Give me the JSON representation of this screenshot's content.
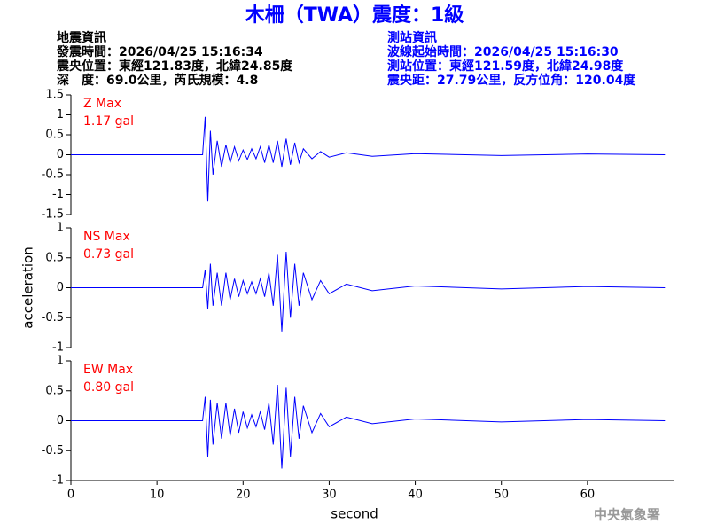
{
  "header": {
    "title": "木柵（TWA）震度：1級",
    "left": [
      "地震資訊",
      "發震時間：2026/04/25 15:16:34",
      "震央位置：東經121.83度，北緯24.85度",
      "深　度：69.0公里，芮氏規模：4.8"
    ],
    "right": [
      "測站資訊",
      "波線起始時間：2026/04/25 15:16:30",
      "測站位置：東經121.59度，北緯24.98度",
      "震央距：27.79公里，反方位角：120.04度"
    ]
  },
  "footer": "中央氣象署",
  "chart_data": [
    {
      "type": "line",
      "color": "#0000ff",
      "label_name": "Z Max",
      "label_value": "1.17 gal",
      "x": [
        0,
        15.3,
        15.6,
        15.9,
        16.2,
        16.5,
        17,
        17.5,
        18,
        18.5,
        19,
        19.5,
        20,
        20.5,
        21,
        21.5,
        22,
        22.5,
        23,
        23.5,
        24,
        24.5,
        25,
        25.5,
        26,
        26.5,
        27,
        28,
        29,
        30,
        32,
        35,
        40,
        50,
        60,
        69
      ],
      "values": [
        0,
        0,
        0.95,
        -1.17,
        0.6,
        -0.5,
        0.35,
        -0.3,
        0.25,
        -0.2,
        0.2,
        -0.15,
        0.12,
        -0.12,
        0.15,
        -0.1,
        0.2,
        -0.2,
        0.25,
        -0.2,
        0.35,
        -0.3,
        0.4,
        -0.25,
        0.3,
        -0.2,
        0.15,
        -0.1,
        0.08,
        -0.06,
        0.05,
        -0.04,
        0.03,
        -0.02,
        0.02,
        0
      ],
      "xlim": [
        0,
        70
      ],
      "ylim": [
        -1.5,
        1.5
      ],
      "yticks": [
        -1.5,
        -1,
        -0.5,
        0,
        0.5,
        1,
        1.5
      ]
    },
    {
      "type": "line",
      "color": "#0000ff",
      "label_name": "NS Max",
      "label_value": "0.73 gal",
      "y_label": "acceleration",
      "x": [
        0,
        15.3,
        15.6,
        15.9,
        16.2,
        16.5,
        17,
        17.5,
        18,
        18.5,
        19,
        19.5,
        20,
        20.5,
        21,
        21.5,
        22,
        22.5,
        23,
        23.5,
        24,
        24.5,
        25,
        25.5,
        26,
        26.5,
        27,
        28,
        29,
        30,
        32,
        35,
        40,
        50,
        60,
        69
      ],
      "values": [
        0,
        0,
        0.3,
        -0.35,
        0.4,
        -0.3,
        0.25,
        -0.3,
        0.25,
        -0.2,
        0.15,
        -0.15,
        0.12,
        -0.1,
        0.1,
        -0.1,
        0.15,
        -0.15,
        0.25,
        -0.3,
        0.55,
        -0.73,
        0.6,
        -0.5,
        0.4,
        -0.3,
        0.25,
        -0.2,
        0.12,
        -0.1,
        0.06,
        -0.05,
        0.03,
        -0.02,
        0.02,
        0
      ],
      "xlim": [
        0,
        70
      ],
      "ylim": [
        -1,
        1
      ],
      "yticks": [
        -1,
        -0.5,
        0,
        0.5,
        1
      ]
    },
    {
      "type": "line",
      "color": "#0000ff",
      "label_name": "EW Max",
      "label_value": "0.80 gal",
      "x_label": "second",
      "x": [
        0,
        15.3,
        15.6,
        15.9,
        16.2,
        16.5,
        17,
        17.5,
        18,
        18.5,
        19,
        19.5,
        20,
        20.5,
        21,
        21.5,
        22,
        22.5,
        23,
        23.5,
        24,
        24.5,
        25,
        25.5,
        26,
        26.5,
        27,
        28,
        29,
        30,
        32,
        35,
        40,
        50,
        60,
        69
      ],
      "values": [
        0,
        0,
        0.4,
        -0.6,
        0.35,
        -0.4,
        0.3,
        -0.3,
        0.3,
        -0.25,
        0.2,
        -0.2,
        0.15,
        -0.12,
        0.1,
        -0.1,
        0.15,
        -0.15,
        0.3,
        -0.4,
        0.6,
        -0.8,
        0.55,
        -0.6,
        0.4,
        -0.3,
        0.25,
        -0.2,
        0.12,
        -0.1,
        0.06,
        -0.05,
        0.03,
        -0.02,
        0.02,
        0
      ],
      "xlim": [
        0,
        70
      ],
      "ylim": [
        -1,
        1
      ],
      "yticks": [
        -1,
        -0.5,
        0,
        0.5,
        1
      ],
      "xticks": [
        0,
        10,
        20,
        30,
        40,
        50,
        60
      ]
    }
  ]
}
